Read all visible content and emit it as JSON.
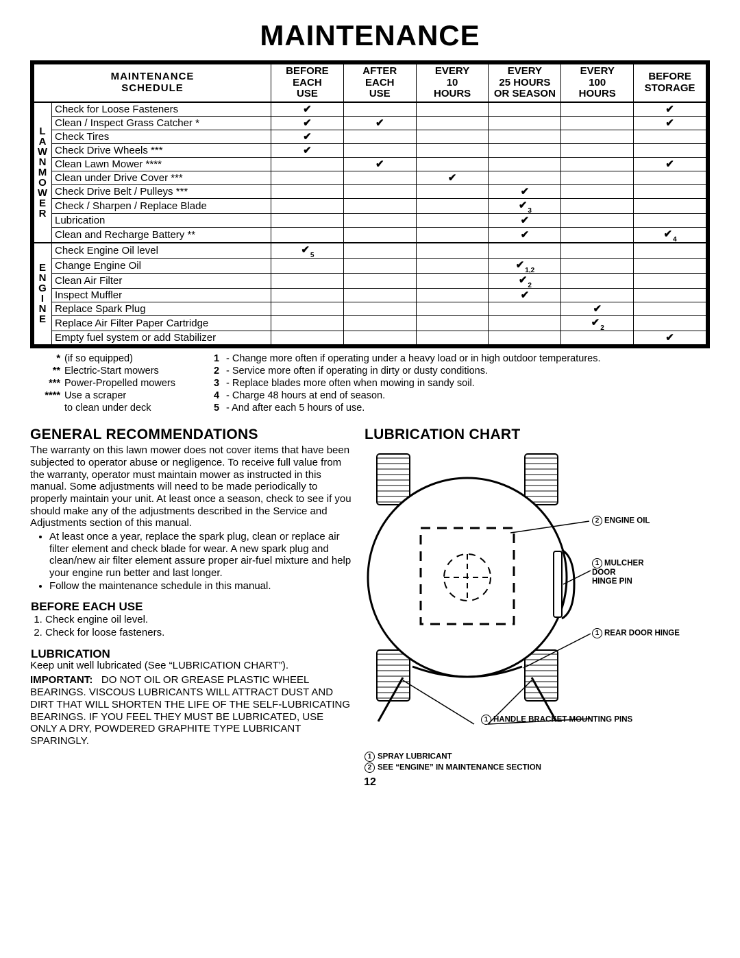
{
  "page_title": "MAINTENANCE",
  "page_number": "12",
  "schedule": {
    "title_l1": "MAINTENANCE",
    "title_l2": "SCHEDULE",
    "columns": [
      {
        "l1": "BEFORE",
        "l2": "EACH",
        "l3": "USE"
      },
      {
        "l1": "AFTER",
        "l2": "EACH",
        "l3": "USE"
      },
      {
        "l1": "EVERY",
        "l2": "10",
        "l3": "HOURS"
      },
      {
        "l1": "EVERY",
        "l2": "25 HOURS",
        "l3": "OR SEASON"
      },
      {
        "l1": "EVERY",
        "l2": "100",
        "l3": "HOURS"
      },
      {
        "l1": "BEFORE",
        "l2": "STORAGE",
        "l3": ""
      }
    ],
    "side1": "LAWN MOWER",
    "side2": "ENGINE",
    "group1": [
      {
        "task": "Check for Loose Fasteners",
        "c": [
          "✔",
          "",
          "",
          "",
          "",
          "✔"
        ],
        "s": [
          "",
          "",
          "",
          "",
          "",
          ""
        ]
      },
      {
        "task": "Clean / Inspect Grass Catcher *",
        "c": [
          "✔",
          "✔",
          "",
          "",
          "",
          "✔"
        ],
        "s": [
          "",
          "",
          "",
          "",
          "",
          ""
        ]
      },
      {
        "task": "Check Tires",
        "c": [
          "✔",
          "",
          "",
          "",
          "",
          ""
        ],
        "s": [
          "",
          "",
          "",
          "",
          "",
          ""
        ]
      },
      {
        "task": "Check Drive Wheels ***",
        "c": [
          "✔",
          "",
          "",
          "",
          "",
          ""
        ],
        "s": [
          "",
          "",
          "",
          "",
          "",
          ""
        ]
      },
      {
        "task": "Clean Lawn Mower ****",
        "c": [
          "",
          "✔",
          "",
          "",
          "",
          "✔"
        ],
        "s": [
          "",
          "",
          "",
          "",
          "",
          ""
        ]
      },
      {
        "task": "Clean under Drive Cover ***",
        "c": [
          "",
          "",
          "✔",
          "",
          "",
          ""
        ],
        "s": [
          "",
          "",
          "",
          "",
          "",
          ""
        ]
      },
      {
        "task": "Check Drive Belt / Pulleys ***",
        "c": [
          "",
          "",
          "",
          "✔",
          "",
          ""
        ],
        "s": [
          "",
          "",
          "",
          "",
          "",
          ""
        ]
      },
      {
        "task": "Check / Sharpen / Replace Blade",
        "c": [
          "",
          "",
          "",
          "✔",
          "",
          ""
        ],
        "s": [
          "",
          "",
          "",
          "3",
          "",
          ""
        ]
      },
      {
        "task": "Lubrication",
        "c": [
          "",
          "",
          "",
          "✔",
          "",
          ""
        ],
        "s": [
          "",
          "",
          "",
          "",
          "",
          ""
        ]
      },
      {
        "task": "Clean and Recharge Battery **",
        "c": [
          "",
          "",
          "",
          "✔",
          "",
          "✔"
        ],
        "s": [
          "",
          "",
          "",
          "",
          "",
          "4"
        ]
      }
    ],
    "group2": [
      {
        "task": "Check Engine Oil level",
        "c": [
          "✔",
          "",
          "",
          "",
          "",
          ""
        ],
        "s": [
          "5",
          "",
          "",
          "",
          "",
          ""
        ]
      },
      {
        "task": "Change Engine Oil",
        "c": [
          "",
          "",
          "",
          "✔",
          "",
          ""
        ],
        "s": [
          "",
          "",
          "",
          "1,2",
          "",
          ""
        ]
      },
      {
        "task": "Clean Air Filter",
        "c": [
          "",
          "",
          "",
          "✔",
          "",
          ""
        ],
        "s": [
          "",
          "",
          "",
          "2",
          "",
          ""
        ]
      },
      {
        "task": "Inspect Muffler",
        "c": [
          "",
          "",
          "",
          "✔",
          "",
          ""
        ],
        "s": [
          "",
          "",
          "",
          "",
          "",
          ""
        ]
      },
      {
        "task": "Replace Spark Plug",
        "c": [
          "",
          "",
          "",
          "",
          "✔",
          ""
        ],
        "s": [
          "",
          "",
          "",
          "",
          "",
          ""
        ]
      },
      {
        "task": "Replace Air Filter Paper Cartridge",
        "c": [
          "",
          "",
          "",
          "",
          "✔",
          ""
        ],
        "s": [
          "",
          "",
          "",
          "",
          "2",
          ""
        ]
      },
      {
        "task": "Empty fuel system or add Stabilizer",
        "c": [
          "",
          "",
          "",
          "",
          "",
          "✔"
        ],
        "s": [
          "",
          "",
          "",
          "",
          "",
          ""
        ]
      }
    ]
  },
  "footnotes_left": [
    {
      "sym": "*",
      "txt": "(if so equipped)"
    },
    {
      "sym": "**",
      "txt": "Electric-Start mowers"
    },
    {
      "sym": "***",
      "txt": "Power-Propelled mowers"
    },
    {
      "sym": "****",
      "txt": "Use a scraper"
    },
    {
      "sym": "",
      "txt": "to clean under deck"
    }
  ],
  "footnotes_right": [
    {
      "n": "1",
      "txt": "- Change more often if operating under a heavy load or in high outdoor temperatures."
    },
    {
      "n": "2",
      "txt": "- Service more often if operating in dirty or dusty conditions."
    },
    {
      "n": "3",
      "txt": "- Replace blades more often when mowing in sandy soil."
    },
    {
      "n": "4",
      "txt": "- Charge 48 hours at end of season."
    },
    {
      "n": "5",
      "txt": "- And after each 5 hours of use."
    }
  ],
  "gen_rec": {
    "heading": "GENERAL RECOMMENDATIONS",
    "para": "The warranty on this lawn mower does not cover items that have been subjected to operator abuse or negligence. To receive full value from the warranty, operator must maintain mower as instructed in this manual. Some adjustments will need to be made periodically to properly maintain your unit. At least once a season, check to see if you should make any of the adjustments described in the Service and Adjustments section of this manual.",
    "bullets": [
      "At least once a year, replace the spark plug, clean or replace air filter element and check blade for wear. A new spark plug and clean/new air filter element assure proper air-fuel mixture and help your engine run better and last longer.",
      "Follow the maintenance schedule in this manual."
    ],
    "before_heading": "BEFORE EACH USE",
    "before_items": [
      "Check engine oil level.",
      "Check for loose fasteners."
    ],
    "lub_heading": "LUBRICATION",
    "lub_para": "Keep unit well lubricated (See “LUBRICATION CHART”).",
    "important": "IMPORTANT:   DO NOT OIL OR GREASE PLASTIC WHEEL BEARINGS.  VISCOUS LUBRICANTS WILL ATTRACT DUST AND DIRT THAT WILL SHORTEN THE LIFE OF THE SELF-LUBRICATING BEARINGS.  IF YOU FEEL THEY MUST BE LUBRICATED, USE ONLY A DRY, POWDERED GRAPHITE TYPE LUBRICANT SPARINGLY."
  },
  "lub_chart": {
    "heading": "LUBRICATION CHART",
    "labels": {
      "engine_oil": "ENGINE OIL",
      "mulcher": "MULCHER\nDOOR\nHINGE PIN",
      "rear_door": "REAR DOOR HINGE",
      "handle": "HANDLE BRACKET MOUNTING PINS",
      "spray": "SPRAY LUBRICANT",
      "see_engine": "SEE “ENGINE” IN MAINTENANCE SECTION"
    }
  },
  "colors": {
    "fg": "#000000",
    "bg": "#ffffff"
  }
}
